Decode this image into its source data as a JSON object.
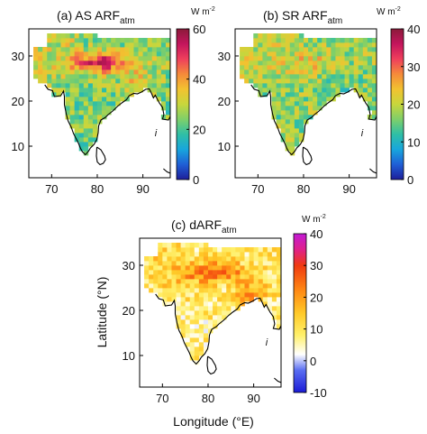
{
  "figure": {
    "x_axis_label": "Longitude (°E)",
    "y_axis_label": "Latitude (°N)"
  },
  "chart_data": [
    {
      "id": "a",
      "type": "heatmap",
      "title": "(a) AS ARF",
      "title_subscript": "atm",
      "colorbar_unit": "W m",
      "colorbar_unit_exponent": "-2",
      "xlim": [
        65,
        96
      ],
      "ylim": [
        3,
        36
      ],
      "xticks": [
        70,
        80,
        90
      ],
      "yticks": [
        10,
        20,
        30
      ],
      "clim": [
        0,
        60
      ],
      "colorbar_ticks": [
        0,
        20,
        40,
        60
      ],
      "colormap": [
        "#1e1e9a",
        "#1f5fd6",
        "#18a6dd",
        "#2fbfa6",
        "#7fcf6a",
        "#c8d63c",
        "#f2c230",
        "#f58a3a",
        "#ef3f5c",
        "#c4155d",
        "#8b1a3a"
      ],
      "regional_values": {
        "north_plain": 52,
        "peninsula": 24,
        "east": 35,
        "northwest": 30
      },
      "grid": false
    },
    {
      "id": "b",
      "type": "heatmap",
      "title": "(b) SR ARF",
      "title_subscript": "atm",
      "colorbar_unit": "W m",
      "colorbar_unit_exponent": "-2",
      "xlim": [
        65,
        96
      ],
      "ylim": [
        3,
        36
      ],
      "xticks": [
        70,
        80,
        90
      ],
      "yticks": [
        10,
        20,
        30
      ],
      "clim": [
        0,
        40
      ],
      "colorbar_ticks": [
        0,
        10,
        20,
        30,
        40
      ],
      "colormap": [
        "#1e1e9a",
        "#1f5fd6",
        "#18a6dd",
        "#2fbfa6",
        "#7fcf6a",
        "#c8d63c",
        "#f2c230",
        "#f58a3a",
        "#ef3f5c",
        "#c4155d",
        "#8b1a3a"
      ],
      "regional_values": {
        "north_plain": 24,
        "peninsula": 17,
        "east": 15,
        "northwest": 20
      },
      "grid": false
    },
    {
      "id": "c",
      "type": "heatmap",
      "title": "(c) dARF",
      "title_subscript": "atm",
      "colorbar_unit": "W m",
      "colorbar_unit_exponent": "-2",
      "xlim": [
        65,
        96
      ],
      "ylim": [
        3,
        36
      ],
      "xticks": [
        70,
        80,
        90
      ],
      "yticks": [
        10,
        20,
        30
      ],
      "clim": [
        -10,
        40
      ],
      "colorbar_ticks": [
        -10,
        0,
        10,
        20,
        30,
        40
      ],
      "colormap": [
        "#1a1ad6",
        "#5a6ef2",
        "#ffffff",
        "#fff06a",
        "#ffc928",
        "#ff8a14",
        "#f03a10",
        "#e0208a",
        "#c21ad6"
      ],
      "colormap_stops": [
        -10,
        -3,
        2,
        8,
        15,
        22,
        30,
        35,
        40
      ],
      "regional_values": {
        "north_plain": 28,
        "peninsula": 8,
        "east": 20,
        "northwest": 12
      },
      "grid": false
    }
  ]
}
